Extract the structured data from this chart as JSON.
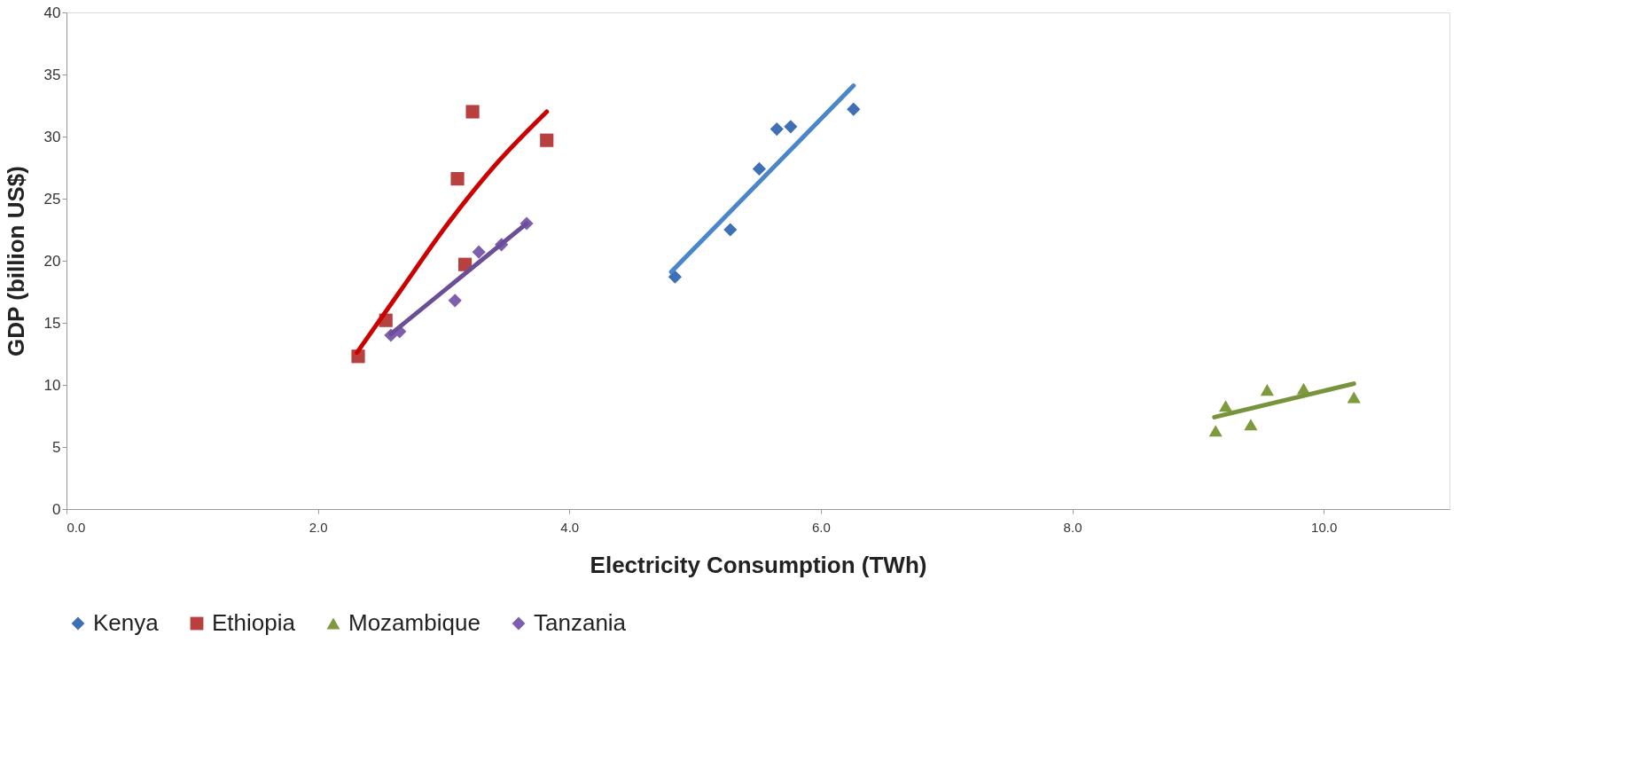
{
  "chart_data": {
    "type": "scatter",
    "xlabel": "Electricity Consumption (TWh)",
    "ylabel": "GDP (billion US$)",
    "xlim": [
      0,
      11
    ],
    "ylim": [
      0,
      40
    ],
    "xticks": [
      {
        "value": 0,
        "label": "0.0"
      },
      {
        "value": 2,
        "label": "2.0"
      },
      {
        "value": 4,
        "label": "4.0"
      },
      {
        "value": 6,
        "label": "6.0"
      },
      {
        "value": 8,
        "label": "8.0"
      },
      {
        "value": 10,
        "label": "10.0"
      }
    ],
    "yticks": [
      0,
      5,
      10,
      15,
      20,
      25,
      30,
      35,
      40
    ],
    "grid": false,
    "legend": "bottom",
    "series": [
      {
        "name": "Kenya",
        "type": "scatter",
        "marker": "diamond",
        "color": "#3f6fb5",
        "x": [
          4.84,
          5.28,
          5.51,
          5.65,
          5.76,
          6.26
        ],
        "values": [
          18.7,
          22.5,
          27.4,
          30.6,
          30.8,
          32.2
        ]
      },
      {
        "name": "Ethiopia",
        "type": "scatter",
        "marker": "square",
        "color": "#b8413f",
        "x": [
          2.32,
          2.54,
          3.11,
          3.17,
          3.23,
          3.82
        ],
        "values": [
          12.3,
          15.2,
          26.6,
          19.7,
          32.0,
          29.7
        ]
      },
      {
        "name": "Mozambique",
        "type": "scatter",
        "marker": "triangle",
        "color": "#7f9a3c",
        "x": [
          9.14,
          9.22,
          9.42,
          9.55,
          9.84,
          10.24
        ],
        "values": [
          6.3,
          8.3,
          6.8,
          9.6,
          9.7,
          9.0
        ]
      },
      {
        "name": "Tanzania",
        "type": "scatter",
        "marker": "diamond",
        "color": "#7e5fae",
        "x": [
          2.58,
          2.65,
          3.09,
          3.28,
          3.46,
          3.66
        ],
        "values": [
          14.0,
          14.3,
          16.8,
          20.7,
          21.3,
          23.0
        ]
      },
      {
        "type": "line",
        "color": "#4a86c8",
        "x": [
          4.81,
          6.26
        ],
        "values": [
          19.1,
          34.1
        ]
      },
      {
        "type": "line",
        "color": "#cc0000",
        "x": [
          2.31,
          2.65,
          3.02,
          3.41,
          3.82
        ],
        "values": [
          12.6,
          17.5,
          22.8,
          27.7,
          32.0
        ]
      },
      {
        "type": "line",
        "color": "#77933c",
        "x": [
          9.13,
          10.24
        ],
        "values": [
          7.4,
          10.1
        ]
      },
      {
        "type": "line",
        "color": "#6a4f96",
        "x": [
          2.58,
          3.66
        ],
        "values": [
          14.1,
          23.0
        ]
      }
    ]
  }
}
